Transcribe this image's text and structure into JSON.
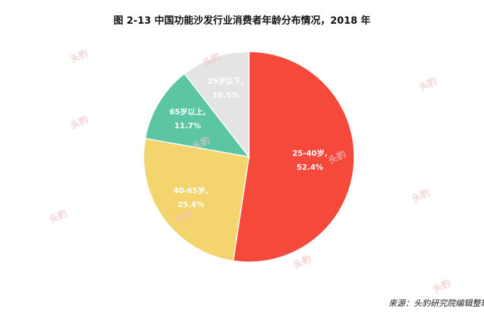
{
  "chart_data": {
    "type": "pie",
    "title": "图  2-13 中国功能沙发行业消费者年龄分布情况，2018 年",
    "slices": [
      {
        "label": "25-40岁,",
        "value": 52.4,
        "display": "52.4%",
        "color": "#f4493b"
      },
      {
        "label": "40-65岁,",
        "value": 25.4,
        "display": "25.4%",
        "color": "#f4d46c"
      },
      {
        "label": "65岁以上,",
        "value": 11.7,
        "display": "11.7%",
        "color": "#5cc6a4"
      },
      {
        "label": "25岁以下,",
        "value": 10.5,
        "display": "10.5%",
        "color": "#e4e4e4"
      }
    ],
    "start": "top",
    "direction": "clockwise"
  },
  "source": "来源：头豹研究院编辑整理",
  "watermark": "头豹"
}
